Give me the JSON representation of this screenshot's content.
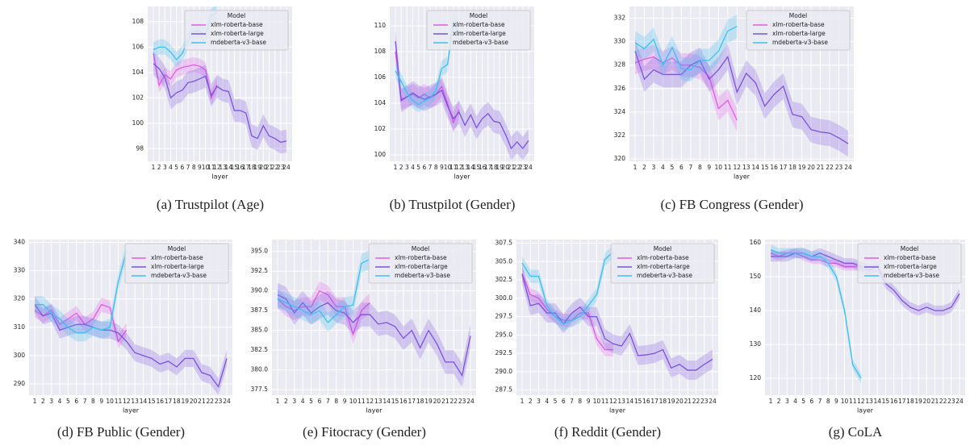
{
  "chart_data": [
    {
      "type": "line",
      "title": "(a) Trustpilot (Age)",
      "xlabel": "layer",
      "legend_title": "Model",
      "legend": "upper right",
      "grid": true,
      "categories": [
        1,
        2,
        3,
        4,
        5,
        6,
        7,
        8,
        9,
        10,
        11,
        12,
        13,
        14,
        15,
        16,
        17,
        18,
        19,
        20,
        21,
        22,
        23,
        24
      ],
      "ylim": [
        97,
        109.2
      ],
      "yticks": [
        98,
        100,
        102,
        104,
        106,
        108
      ],
      "series": [
        {
          "name": "xlm-roberta-base",
          "color": "#e25ce6",
          "ci": 0.6,
          "values": [
            105.5,
            103,
            103.8,
            103.5,
            104.2,
            104.4,
            104.5,
            104.6,
            104.5,
            104.2,
            102,
            103,
            null,
            null,
            null,
            null,
            null,
            null,
            null,
            null,
            null,
            null,
            null,
            null
          ]
        },
        {
          "name": "xlm-roberta-large",
          "color": "#7b52e0",
          "ci": 0.9,
          "values": [
            104.7,
            104.3,
            103.6,
            102,
            102.4,
            102.6,
            103.2,
            103.3,
            103.5,
            103.7,
            102.2,
            102.9,
            102.6,
            102.5,
            101,
            101,
            100.8,
            99,
            98.8,
            99.8,
            99,
            98.8,
            98.5,
            98.6
          ]
        },
        {
          "name": "mdeberta-v3-base",
          "color": "#3ec0ef",
          "ci": 0.6,
          "values": [
            105.8,
            106,
            106,
            105.6,
            105,
            105.5,
            106.5,
            107.2,
            107.3,
            106.9,
            108.5,
            108.7,
            null,
            null,
            null,
            null,
            null,
            null,
            null,
            null,
            null,
            null,
            null,
            null
          ]
        }
      ]
    },
    {
      "type": "line",
      "title": "(b) Trustpilot (Gender)",
      "xlabel": "layer",
      "legend_title": "Model",
      "legend": "upper right",
      "grid": true,
      "categories": [
        1,
        2,
        3,
        4,
        5,
        6,
        7,
        8,
        9,
        10,
        11,
        12,
        13,
        14,
        15,
        16,
        17,
        18,
        19,
        20,
        21,
        22,
        23,
        24
      ],
      "ylim": [
        99.5,
        111.5
      ],
      "yticks": [
        100,
        102,
        104,
        106,
        108,
        110
      ],
      "series": [
        {
          "name": "xlm-roberta-base",
          "color": "#e25ce6",
          "ci": 0.8,
          "values": [
            108,
            104.3,
            104.5,
            104.7,
            104.4,
            104.7,
            104.4,
            104.7,
            105.3,
            104,
            102.5,
            103.5,
            null,
            null,
            null,
            null,
            null,
            null,
            null,
            null,
            null,
            null,
            null,
            null
          ]
        },
        {
          "name": "xlm-roberta-large",
          "color": "#7b52e0",
          "ci": 0.9,
          "values": [
            108.8,
            104.2,
            104.5,
            104.8,
            104.5,
            104.3,
            104.5,
            104.7,
            105,
            103.8,
            102.8,
            103.3,
            102.3,
            103.1,
            102.1,
            102.8,
            103.2,
            102.6,
            102.5,
            101.6,
            100.5,
            101,
            100.5,
            101.1
          ]
        },
        {
          "name": "mdeberta-v3-base",
          "color": "#3ec0ef",
          "ci": 0.6,
          "values": [
            106.5,
            105.7,
            104.8,
            104.2,
            103.9,
            104.2,
            104.4,
            105,
            106.7,
            107,
            110.3,
            109.5,
            null,
            null,
            null,
            null,
            null,
            null,
            null,
            null,
            null,
            null,
            null,
            null
          ]
        }
      ]
    },
    {
      "type": "line",
      "title": "(c) FB Congress (Gender)",
      "xlabel": "layer",
      "legend_title": "Model",
      "legend": "upper right",
      "grid": true,
      "categories": [
        1,
        2,
        3,
        4,
        5,
        6,
        7,
        8,
        9,
        10,
        11,
        12,
        13,
        14,
        15,
        16,
        17,
        18,
        19,
        20,
        21,
        22,
        23,
        24
      ],
      "ylim": [
        319.8,
        333
      ],
      "yticks": [
        320,
        322,
        324,
        326,
        328,
        330,
        332
      ],
      "series": [
        {
          "name": "xlm-roberta-base",
          "color": "#e25ce6",
          "ci": 1,
          "values": [
            328.2,
            328.5,
            328.7,
            328.2,
            328.6,
            328,
            328,
            327.8,
            327,
            324.3,
            325,
            323.3,
            null,
            null,
            null,
            null,
            null,
            null,
            null,
            null,
            null,
            null,
            null,
            null
          ]
        },
        {
          "name": "xlm-roberta-large",
          "color": "#7b52e0",
          "ci": 1.1,
          "values": [
            329.2,
            326.8,
            327.6,
            327.2,
            327.2,
            327.2,
            328,
            328.4,
            326.8,
            327.6,
            328.7,
            325.7,
            327.3,
            326.5,
            324.5,
            325.5,
            326.2,
            323.8,
            323.6,
            322.5,
            322.3,
            322.2,
            321.8,
            321.3
          ]
        },
        {
          "name": "mdeberta-v3-base",
          "color": "#3ec0ef",
          "ci": 1,
          "values": [
            329.9,
            329.4,
            330.2,
            328,
            329.5,
            327.7,
            327.6,
            328.4,
            328.4,
            329.2,
            330.9,
            331.3,
            null,
            null,
            null,
            null,
            null,
            null,
            null,
            null,
            null,
            null,
            null,
            null
          ]
        }
      ]
    },
    {
      "type": "line",
      "title": "(d) FB Public (Gender)",
      "xlabel": "layer",
      "legend_title": "Model",
      "legend": "upper right",
      "grid": true,
      "categories": [
        1,
        2,
        3,
        4,
        5,
        6,
        7,
        8,
        9,
        10,
        11,
        12,
        13,
        14,
        15,
        16,
        17,
        18,
        19,
        20,
        21,
        22,
        23,
        24
      ],
      "ylim": [
        286,
        341
      ],
      "yticks": [
        290,
        300,
        310,
        320,
        330,
        340
      ],
      "series": [
        {
          "name": "xlm-roberta-base",
          "color": "#e25ce6",
          "ci": 2.5,
          "values": [
            316,
            314,
            316,
            311,
            313,
            315,
            311,
            313,
            318,
            317,
            305,
            309,
            null,
            null,
            null,
            null,
            null,
            null,
            null,
            null,
            null,
            null,
            null,
            null
          ]
        },
        {
          "name": "xlm-roberta-large",
          "color": "#7b52e0",
          "ci": 3,
          "values": [
            318,
            314,
            315,
            309,
            310,
            311,
            311,
            310,
            309,
            309,
            308,
            305,
            301,
            300,
            299,
            297,
            298,
            296,
            299,
            299,
            294,
            293,
            289,
            299
          ]
        },
        {
          "name": "mdeberta-v3-base",
          "color": "#3ec0ef",
          "ci": 3,
          "values": [
            318,
            318,
            315,
            313,
            310,
            308,
            308,
            310,
            309,
            310,
            326,
            337,
            null,
            null,
            null,
            null,
            null,
            null,
            null,
            null,
            null,
            null,
            null,
            null
          ]
        }
      ]
    },
    {
      "type": "line",
      "title": "(e) Fitocracy (Gender)",
      "xlabel": "layer",
      "legend_title": "Model",
      "legend": "upper right",
      "grid": true,
      "categories": [
        1,
        2,
        3,
        4,
        5,
        6,
        7,
        8,
        9,
        10,
        11,
        12,
        13,
        14,
        15,
        16,
        17,
        18,
        19,
        20,
        21,
        22,
        23,
        24
      ],
      "ylim": [
        376.8,
        396.5
      ],
      "yticks": [
        377.5,
        {
          "value": 380,
          "label": "380.0"
        },
        382.5,
        {
          "value": 385,
          "label": "385.0"
        },
        387.5,
        {
          "value": 390,
          "label": "390.0"
        },
        392.5,
        {
          "value": 395,
          "label": "395.0"
        }
      ],
      "series": [
        {
          "name": "xlm-roberta-base",
          "color": "#e25ce6",
          "ci": 1.2,
          "values": [
            389,
            388,
            387.5,
            388,
            388,
            390,
            389.5,
            388,
            388,
            384.5,
            387.5,
            388.5,
            null,
            null,
            null,
            null,
            null,
            null,
            null,
            null,
            null,
            null,
            null,
            null
          ]
        },
        {
          "name": "xlm-roberta-large",
          "color": "#7b52e0",
          "ci": 1.5,
          "values": [
            389.5,
            389,
            387.2,
            388.5,
            387.2,
            388,
            388.5,
            387.5,
            387.2,
            386,
            387,
            387,
            385.8,
            386,
            385.5,
            384,
            385,
            382.8,
            385,
            383.3,
            381,
            381,
            379.3,
            384.3
          ]
        },
        {
          "name": "mdeberta-v3-base",
          "color": "#3ec0ef",
          "ci": 1.2,
          "values": [
            389,
            388.5,
            388,
            387.5,
            387,
            387.5,
            386,
            387,
            388,
            388.2,
            393.5,
            394,
            null,
            null,
            null,
            null,
            null,
            null,
            null,
            null,
            null,
            null,
            null,
            null
          ]
        }
      ]
    },
    {
      "type": "line",
      "title": "(f) Reddit (Gender)",
      "xlabel": "layer",
      "legend_title": "Model",
      "legend": "upper right",
      "grid": true,
      "categories": [
        1,
        2,
        3,
        4,
        5,
        6,
        7,
        8,
        9,
        10,
        11,
        12,
        13,
        14,
        15,
        16,
        17,
        18,
        19,
        20,
        21,
        22,
        23,
        24
      ],
      "ylim": [
        286.8,
        308
      ],
      "yticks": [
        287.5,
        {
          "value": 290,
          "label": "290.0"
        },
        292.5,
        {
          "value": 295,
          "label": "295.0"
        },
        297.5,
        {
          "value": 300,
          "label": "300.0"
        },
        302.5,
        {
          "value": 305,
          "label": "305.0"
        },
        307.5
      ],
      "series": [
        {
          "name": "xlm-roberta-base",
          "color": "#e25ce6",
          "ci": 0.9,
          "values": [
            303.3,
            300.5,
            300,
            298.5,
            297.5,
            297,
            297,
            298,
            298,
            294.5,
            293,
            293,
            null,
            null,
            null,
            null,
            null,
            null,
            null,
            null,
            null,
            null,
            null,
            null
          ]
        },
        {
          "name": "xlm-roberta-large",
          "color": "#7b52e0",
          "ci": 1.3,
          "values": [
            303.3,
            299,
            299.3,
            298,
            298,
            296.5,
            298,
            298.8,
            297.5,
            297.5,
            294.5,
            293.8,
            293.5,
            295.2,
            292.2,
            292.3,
            292.5,
            293,
            290.5,
            291,
            290.2,
            290.2,
            291,
            291.7
          ]
        },
        {
          "name": "mdeberta-v3-base",
          "color": "#3ec0ef",
          "ci": 0.9,
          "values": [
            304.8,
            303,
            303,
            299,
            297.5,
            296.5,
            297,
            297.5,
            299,
            300.5,
            305.3,
            306.3,
            null,
            null,
            null,
            null,
            null,
            null,
            null,
            null,
            null,
            null,
            null,
            null
          ]
        }
      ]
    },
    {
      "type": "line",
      "title": "(g) CoLA",
      "xlabel": "layer",
      "legend_title": "Model",
      "legend": "upper right",
      "grid": true,
      "categories": [
        1,
        2,
        3,
        4,
        5,
        6,
        7,
        8,
        9,
        10,
        11,
        12,
        13,
        14,
        15,
        16,
        17,
        18,
        19,
        20,
        21,
        22,
        23,
        24
      ],
      "ylim": [
        115,
        161
      ],
      "yticks": [
        120,
        130,
        140,
        150,
        160
      ],
      "series": [
        {
          "name": "xlm-roberta-base",
          "color": "#e25ce6",
          "ci": 1.2,
          "values": [
            157,
            156,
            157,
            157,
            156,
            155,
            155,
            154,
            154,
            153,
            153,
            153,
            null,
            null,
            null,
            null,
            null,
            null,
            null,
            null,
            null,
            null,
            null,
            null
          ]
        },
        {
          "name": "xlm-roberta-large",
          "color": "#7b52e0",
          "ci": 1.5,
          "values": [
            156,
            156,
            156,
            157,
            157,
            156,
            157,
            156,
            155,
            154,
            154,
            153,
            152,
            153,
            148,
            146,
            143,
            141,
            140,
            141,
            140,
            140,
            141,
            145
          ]
        },
        {
          "name": "mdeberta-v3-base",
          "color": "#3ec0ef",
          "ci": 1.5,
          "values": [
            158,
            157,
            157,
            157,
            157,
            156,
            156,
            154,
            150,
            140,
            124,
            120,
            null,
            null,
            null,
            null,
            null,
            null,
            null,
            null,
            null,
            null,
            null,
            null
          ]
        }
      ]
    }
  ]
}
